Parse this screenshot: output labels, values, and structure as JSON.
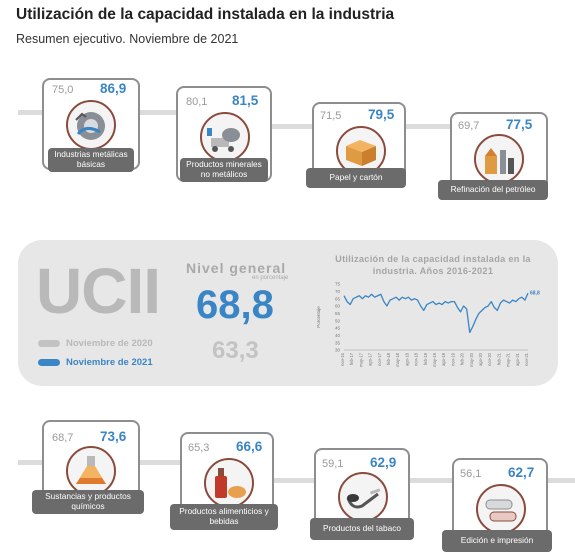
{
  "header": {
    "title": "Utilización de la capacidad instalada en la industria",
    "subtitle": "Resumen ejecutivo. Noviembre de 2021"
  },
  "colors": {
    "accent": "#3a85c5",
    "previous": "#c3c3c3",
    "circle_border": "#8a4b3d",
    "label_bg": "#6b6b6b",
    "panel_bg": "#e7e7e7"
  },
  "sectors": [
    {
      "label": "Industrias metálicas básicas",
      "nov_2020": "75,0",
      "nov_2021": "86,9",
      "icon": "steel-coil-icon"
    },
    {
      "label": "Productos minerales no metálicos",
      "nov_2020": "80,1",
      "nov_2021": "81,5",
      "icon": "cement-mixer-icon"
    },
    {
      "label": "Papel y cartón",
      "nov_2020": "71,5",
      "nov_2021": "79,5",
      "icon": "cardboard-box-icon"
    },
    {
      "label": "Refinación del petróleo",
      "nov_2020": "69,7",
      "nov_2021": "77,5",
      "icon": "refinery-icon"
    },
    {
      "label": "Sustancias y productos químicos",
      "nov_2020": "68,7",
      "nov_2021": "73,6",
      "icon": "flask-icon"
    },
    {
      "label": "Productos alimenticios y bebidas",
      "nov_2020": "65,3",
      "nov_2021": "66,6",
      "icon": "bottle-bread-icon"
    },
    {
      "label": "Productos del tabaco",
      "nov_2020": "59,1",
      "nov_2021": "62,9",
      "icon": "pipe-icon"
    },
    {
      "label": "Edición e impresión",
      "nov_2020": "56,1",
      "nov_2021": "62,7",
      "icon": "paper-rolls-icon"
    }
  ],
  "summary": {
    "logo_text": "UCII",
    "level_title": "Nivel general",
    "level_unit": "en porcentaje",
    "value_2021": "68,8",
    "value_2020": "63,3",
    "legend_2020": "Noviembre de 2020",
    "legend_2021": "Noviembre de 2021"
  },
  "chart_data": {
    "type": "line",
    "title": "Utilización de la capacidad instalada en la industria. Años 2016-2021",
    "xlabel": "",
    "ylabel": "Porcentaje",
    "ylim": [
      30,
      75
    ],
    "yticks": [
      30,
      35,
      40,
      45,
      50,
      55,
      60,
      65,
      70,
      75
    ],
    "grid": false,
    "last_label": "68,8",
    "x_tick_labels": [
      "nov-16",
      "feb-17",
      "may-17",
      "ago-17",
      "nov-17",
      "feb-18",
      "may-18",
      "ago-18",
      "nov-18",
      "feb-19",
      "may-19",
      "ago-19",
      "nov-19",
      "feb-20",
      "may-20",
      "ago-20",
      "nov-20",
      "feb-21",
      "may-21",
      "ago-21",
      "nov-21"
    ],
    "x": [
      "nov-16",
      "dic-16",
      "ene-17",
      "feb-17",
      "mar-17",
      "abr-17",
      "may-17",
      "jun-17",
      "jul-17",
      "ago-17",
      "sep-17",
      "oct-17",
      "nov-17",
      "dic-17",
      "ene-18",
      "feb-18",
      "mar-18",
      "abr-18",
      "may-18",
      "jun-18",
      "jul-18",
      "ago-18",
      "sep-18",
      "oct-18",
      "nov-18",
      "dic-18",
      "ene-19",
      "feb-19",
      "mar-19",
      "abr-19",
      "may-19",
      "jun-19",
      "jul-19",
      "ago-19",
      "sep-19",
      "oct-19",
      "nov-19",
      "dic-19",
      "ene-20",
      "feb-20",
      "mar-20",
      "abr-20",
      "may-20",
      "jun-20",
      "jul-20",
      "ago-20",
      "sep-20",
      "oct-20",
      "nov-20",
      "dic-20",
      "ene-21",
      "feb-21",
      "mar-21",
      "abr-21",
      "may-21",
      "jun-21",
      "jul-21",
      "ago-21",
      "sep-21",
      "oct-21",
      "nov-21"
    ],
    "series": [
      {
        "values": [
          67,
          63,
          61,
          65,
          66,
          67,
          65,
          67,
          66,
          68,
          66,
          67,
          68,
          63,
          60,
          64,
          65,
          66,
          64,
          66,
          65,
          66,
          64,
          65,
          64,
          60,
          57,
          61,
          62,
          63,
          61,
          62,
          61,
          63,
          62,
          63,
          63,
          59,
          56,
          60,
          58,
          42,
          46,
          51,
          55,
          57,
          59,
          60,
          63,
          59,
          57,
          62,
          64,
          63,
          62,
          64,
          63,
          65,
          66,
          64,
          68.8
        ]
      }
    ]
  }
}
